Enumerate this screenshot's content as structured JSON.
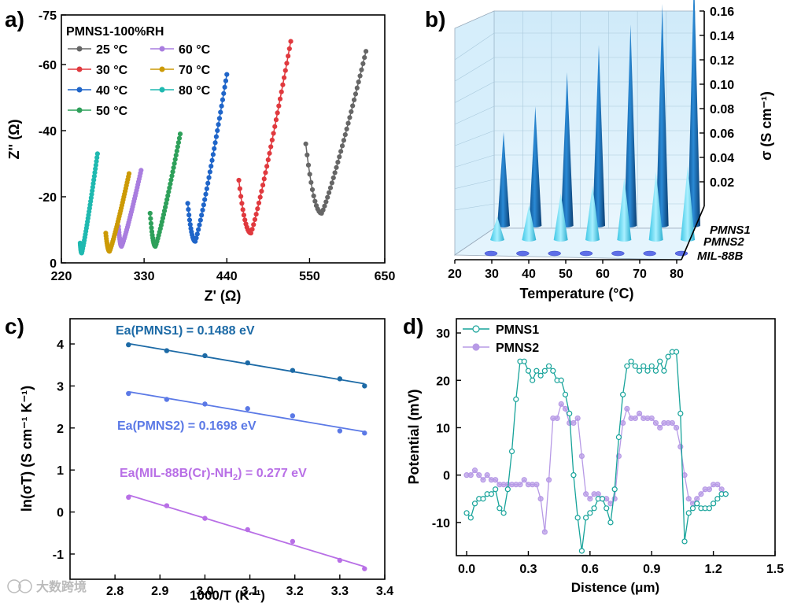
{
  "panel_labels": {
    "a": "a)",
    "b": "b)",
    "c": "c)",
    "d": "d)"
  },
  "watermark": "大数跨境",
  "chart_data": [
    {
      "id": "a",
      "type": "scatter",
      "title": "PMNS1-100%RH",
      "xlabel": "Z' (Ω)",
      "ylabel": "Z'' (Ω)",
      "xlim": [
        220,
        650
      ],
      "ylim": [
        0,
        -75
      ],
      "xticks": [
        220,
        330,
        440,
        550,
        650
      ],
      "yticks": [
        0,
        -20,
        -40,
        -60,
        -75
      ],
      "series": [
        {
          "name": "25 °C",
          "color": "#666666",
          "min_x": 566,
          "min_y": -15,
          "left_end": [
            545,
            -36
          ],
          "right_end": [
            625,
            -64
          ]
        },
        {
          "name": "30 °C",
          "color": "#e0393e",
          "min_x": 472,
          "min_y": -9,
          "left_end": [
            456,
            -25
          ],
          "right_end": [
            525,
            -67
          ]
        },
        {
          "name": "40 °C",
          "color": "#1f65c9",
          "min_x": 398,
          "min_y": -6.5,
          "left_end": [
            388,
            -18
          ],
          "right_end": [
            440,
            -57
          ]
        },
        {
          "name": "50 °C",
          "color": "#2ea05a",
          "min_x": 345,
          "min_y": -5,
          "left_end": [
            338,
            -15
          ],
          "right_end": [
            378,
            -39
          ]
        },
        {
          "name": "60 °C",
          "color": "#a97ddf",
          "min_x": 300,
          "min_y": -5,
          "left_end": [
            296,
            -11
          ],
          "right_end": [
            326,
            -28
          ]
        },
        {
          "name": "70 °C",
          "color": "#cc9a06",
          "min_x": 284,
          "min_y": -3.5,
          "left_end": [
            279,
            -9
          ],
          "right_end": [
            310,
            -27
          ]
        },
        {
          "name": "80 °C",
          "color": "#1fb9b0",
          "min_x": 247,
          "min_y": -3,
          "left_end": [
            245,
            -6
          ],
          "right_end": [
            268,
            -33
          ]
        }
      ]
    },
    {
      "id": "b",
      "type": "bar",
      "xlabel": "Temperature (°C)",
      "ylabel": "σ (S cm⁻¹)",
      "categories": [
        20,
        30,
        40,
        50,
        60,
        70,
        80
      ],
      "xticks": [
        "20",
        "30",
        "40",
        "50",
        "60",
        "70",
        "80"
      ],
      "zticks": [
        "0.02",
        "0.04",
        "0.06",
        "0.08",
        "0.10",
        "0.12",
        "0.14",
        "0.16"
      ],
      "zlim": [
        0,
        0.16
      ],
      "series": [
        {
          "name": "PMNS1",
          "values": [
            0.055,
            0.07,
            0.09,
            0.106,
            0.118,
            0.13,
            0.147
          ]
        },
        {
          "name": "PMNS2",
          "values": [
            0.012,
            0.018,
            0.024,
            0.028,
            0.032,
            0.035,
            0.038
          ]
        },
        {
          "name": "MIL-88B",
          "values": [
            0.0004,
            0.0005,
            0.0006,
            0.0008,
            0.0009,
            0.001,
            0.0012
          ]
        }
      ]
    },
    {
      "id": "c",
      "type": "scatter",
      "xlabel": "1000/T (K⁻¹)",
      "ylabel": "ln(σT) (S cm⁻¹ K⁻¹)",
      "xlim": [
        2.7,
        3.4
      ],
      "ylim": [
        -1.6,
        4.6
      ],
      "xticks": [
        "2.8",
        "2.9",
        "3.0",
        "3.1",
        "3.2",
        "3.3",
        "3.4"
      ],
      "yticks": [
        "-1",
        "0",
        "1",
        "2",
        "3",
        "4"
      ],
      "x": [
        2.83,
        2.915,
        3.0,
        3.095,
        3.195,
        3.3,
        3.355
      ],
      "series": [
        {
          "name": "PMNS1",
          "color": "#1c6aa6",
          "annotation": "Ea(PMNS1) = 0.1488 eV",
          "y": [
            3.98,
            3.84,
            3.72,
            3.55,
            3.37,
            3.17,
            3.0
          ]
        },
        {
          "name": "PMNS2",
          "color": "#5b79e6",
          "annotation": "Ea(PMNS2) = 0.1698 eV",
          "y": [
            2.82,
            2.68,
            2.57,
            2.46,
            2.29,
            1.93,
            1.88
          ]
        },
        {
          "name": "MIL-88B(Cr)-NH2",
          "color": "#b86fe6",
          "annotation_prefix": "Ea(MIL-88B(Cr)-NH",
          "annotation_sub": "2",
          "annotation_suffix": ") = 0.277 eV",
          "y": [
            0.35,
            0.15,
            -0.15,
            -0.42,
            -0.7,
            -1.15,
            -1.35
          ]
        }
      ]
    },
    {
      "id": "d",
      "type": "line",
      "xlabel": "Distence (μm)",
      "ylabel": "Potential (mV)",
      "xlim": [
        -0.05,
        1.5
      ],
      "ylim": [
        -17,
        33
      ],
      "xticks": [
        "0.0",
        "0.3",
        "0.6",
        "0.9",
        "1.2",
        "1.5"
      ],
      "yticks": [
        "-10",
        "0",
        "10",
        "20",
        "30"
      ],
      "series": [
        {
          "name": "PMNS1",
          "color": "#17a39a",
          "x": [
            0.0,
            0.02,
            0.04,
            0.06,
            0.08,
            0.1,
            0.12,
            0.14,
            0.16,
            0.18,
            0.2,
            0.22,
            0.24,
            0.26,
            0.28,
            0.3,
            0.32,
            0.34,
            0.36,
            0.38,
            0.4,
            0.42,
            0.44,
            0.46,
            0.48,
            0.5,
            0.52,
            0.54,
            0.56,
            0.58,
            0.6,
            0.62,
            0.64,
            0.66,
            0.68,
            0.7,
            0.72,
            0.74,
            0.76,
            0.78,
            0.8,
            0.82,
            0.84,
            0.86,
            0.88,
            0.9,
            0.92,
            0.94,
            0.96,
            0.98,
            1.0,
            1.02,
            1.04,
            1.06,
            1.08,
            1.1,
            1.12,
            1.14,
            1.16,
            1.18,
            1.2,
            1.22,
            1.24,
            1.26
          ],
          "y": [
            -8,
            -9,
            -6,
            -5,
            -5,
            -4,
            -4,
            -3,
            -7,
            -8,
            -3,
            5,
            16,
            24,
            24,
            22,
            20,
            22,
            21,
            22,
            23,
            22,
            20,
            20,
            17,
            13,
            0,
            -9,
            -16,
            -9,
            -8,
            -7,
            -5,
            -5,
            -7,
            -10,
            -3,
            8,
            17,
            23,
            24,
            23,
            22,
            23,
            22,
            23,
            22,
            24,
            22,
            25,
            26,
            26,
            13,
            -14,
            -8,
            -7,
            -6,
            -7,
            -7,
            -7,
            -6,
            -5,
            -4,
            -4
          ]
        },
        {
          "name": "PMNS2",
          "color": "#b79ae6",
          "x": [
            0.0,
            0.02,
            0.04,
            0.06,
            0.08,
            0.1,
            0.12,
            0.14,
            0.16,
            0.18,
            0.2,
            0.22,
            0.24,
            0.26,
            0.28,
            0.3,
            0.32,
            0.34,
            0.36,
            0.38,
            0.4,
            0.42,
            0.44,
            0.46,
            0.48,
            0.5,
            0.52,
            0.54,
            0.56,
            0.58,
            0.6,
            0.62,
            0.64,
            0.66,
            0.68,
            0.7,
            0.72,
            0.74,
            0.76,
            0.78,
            0.8,
            0.82,
            0.84,
            0.86,
            0.88,
            0.9,
            0.92,
            0.94,
            0.96,
            0.98,
            1.0,
            1.02,
            1.04,
            1.06,
            1.08,
            1.1,
            1.12,
            1.14,
            1.16,
            1.18,
            1.2,
            1.22,
            1.24,
            1.26
          ],
          "y": [
            0,
            0,
            1,
            0,
            -1,
            0,
            -1,
            -1,
            -2,
            -2,
            -2,
            -2,
            -2,
            -2,
            -1,
            -2,
            -2,
            -2,
            -5,
            -12,
            -1,
            12,
            12,
            15,
            14,
            11,
            11,
            12,
            4,
            -4,
            -5,
            -4,
            -4,
            -5,
            -5,
            -6,
            -5,
            4,
            11,
            14,
            12,
            12,
            13,
            12,
            12,
            12,
            11,
            10,
            11,
            11,
            11,
            10,
            6,
            0,
            -5,
            -6,
            -5,
            -4,
            -3,
            -3,
            -2,
            -2,
            -3,
            -4
          ]
        }
      ]
    }
  ]
}
